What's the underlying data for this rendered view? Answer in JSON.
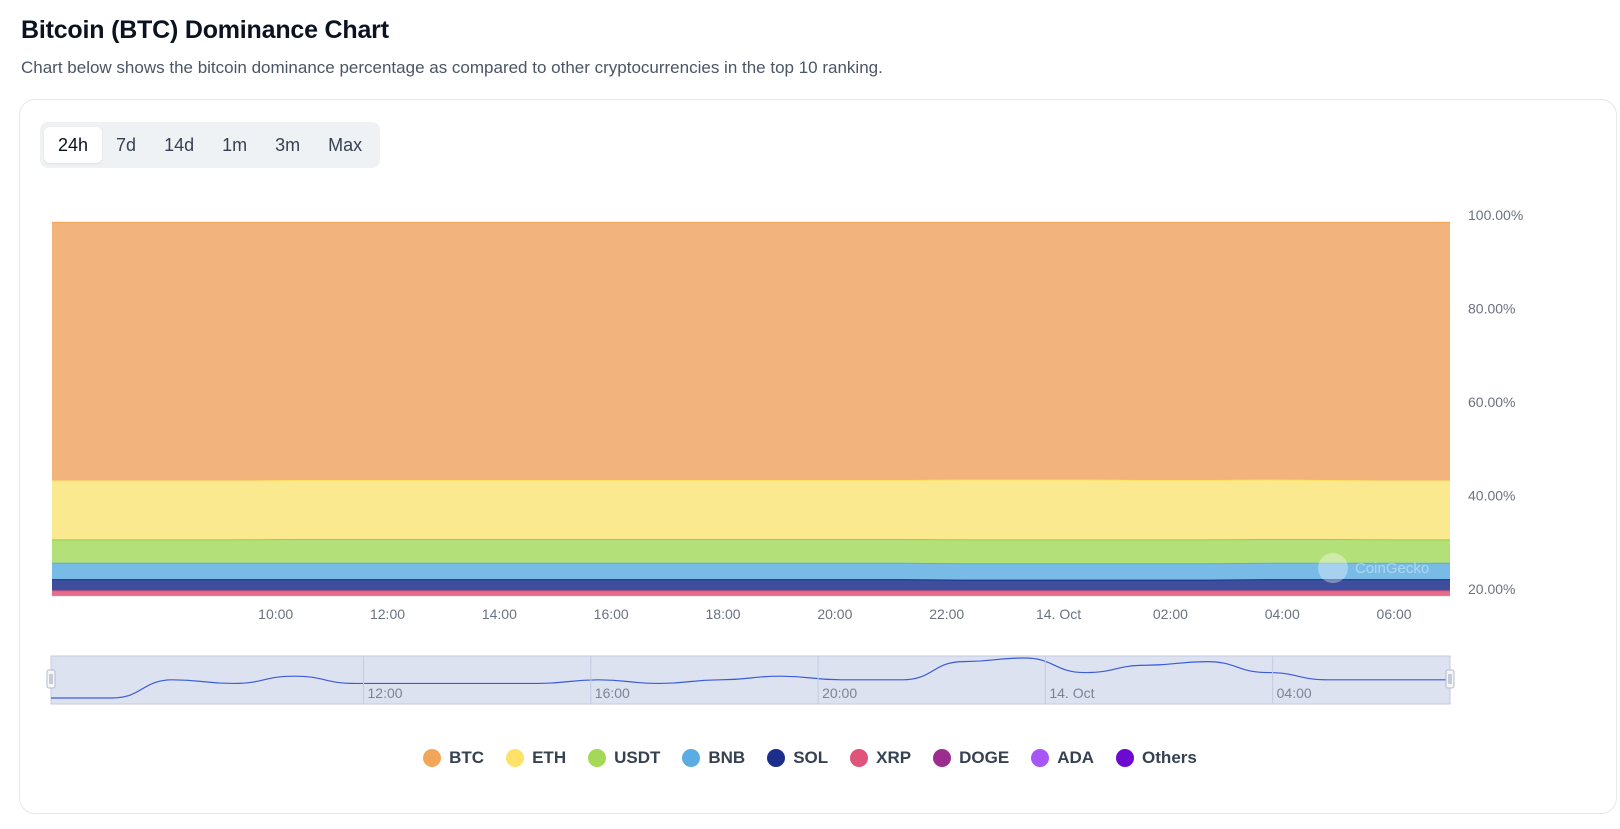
{
  "header": {
    "title": "Bitcoin (BTC) Dominance Chart",
    "subtitle": "Chart below shows the bitcoin dominance percentage as compared to other cryptocurrencies in the top 10 ranking."
  },
  "range_tabs": [
    "24h",
    "7d",
    "14d",
    "1m",
    "3m",
    "Max"
  ],
  "active_range": "24h",
  "watermark": "CoinGecko",
  "colors": {
    "BTC": "#f2b47c",
    "ETH": "#fbe98f",
    "USDT": "#b4e07a",
    "BNB": "#78bbe6",
    "SOL": "#3d4f9c",
    "XRP": "#e96b8c",
    "DOGE": "#a3479a",
    "ADA": "#a968ea",
    "Others": "#6f12d4",
    "grid": "#e6e8ec",
    "axis_text": "#6b7280",
    "navigator_fill": "#dde2f0",
    "navigator_line": "#3b5bd9"
  },
  "legend": [
    {
      "name": "BTC",
      "color": "#f2a65a"
    },
    {
      "name": "ETH",
      "color": "#fde267"
    },
    {
      "name": "USDT",
      "color": "#a3d957"
    },
    {
      "name": "BNB",
      "color": "#5aade0"
    },
    {
      "name": "SOL",
      "color": "#1b2e8c"
    },
    {
      "name": "XRP",
      "color": "#e0537a"
    },
    {
      "name": "DOGE",
      "color": "#9c2d8e"
    },
    {
      "name": "ADA",
      "color": "#a855f7"
    },
    {
      "name": "Others",
      "color": "#6d0ad1"
    }
  ],
  "chart_data": {
    "type": "area",
    "stacking": "percent",
    "title": "Bitcoin (BTC) Dominance Chart",
    "x_hours": [
      8,
      9,
      10,
      11,
      12,
      13,
      14,
      15,
      16,
      17,
      18,
      19,
      20,
      21,
      22,
      23,
      24,
      25,
      26,
      27,
      28,
      29,
      30,
      31
    ],
    "xticks": [
      {
        "hour": 10,
        "label": "10:00"
      },
      {
        "hour": 12,
        "label": "12:00"
      },
      {
        "hour": 14,
        "label": "14:00"
      },
      {
        "hour": 16,
        "label": "16:00"
      },
      {
        "hour": 18,
        "label": "18:00"
      },
      {
        "hour": 20,
        "label": "20:00"
      },
      {
        "hour": 22,
        "label": "22:00"
      },
      {
        "hour": 24,
        "label": "14. Oct"
      },
      {
        "hour": 26,
        "label": "02:00"
      },
      {
        "hour": 28,
        "label": "04:00"
      },
      {
        "hour": 30,
        "label": "06:00"
      }
    ],
    "x_range": [
      6,
      31
    ],
    "yticks": [
      {
        "value": 20,
        "label": "20.00%"
      },
      {
        "value": 40,
        "label": "40.00%"
      },
      {
        "value": 60,
        "label": "60.00%"
      },
      {
        "value": 80,
        "label": "80.00%"
      },
      {
        "value": 100,
        "label": "100.00%"
      }
    ],
    "ylim": [
      20,
      100
    ],
    "series": [
      {
        "name": "Others",
        "values": [
          0.8,
          0.8,
          0.8,
          0.8,
          0.8,
          0.8,
          0.8,
          0.8,
          0.8,
          0.8,
          0.8,
          0.8,
          0.8,
          0.8,
          0.8,
          0.8,
          0.8,
          0.8,
          0.8,
          0.8,
          0.8,
          0.8,
          0.8,
          0.8
        ]
      },
      {
        "name": "ADA",
        "values": [
          0.3,
          0.3,
          0.3,
          0.3,
          0.3,
          0.3,
          0.3,
          0.3,
          0.3,
          0.3,
          0.3,
          0.3,
          0.3,
          0.3,
          0.3,
          0.3,
          0.3,
          0.3,
          0.3,
          0.3,
          0.3,
          0.3,
          0.3,
          0.3
        ]
      },
      {
        "name": "DOGE",
        "values": [
          0.6,
          0.6,
          0.6,
          0.6,
          0.6,
          0.6,
          0.6,
          0.6,
          0.6,
          0.6,
          0.6,
          0.6,
          0.6,
          0.6,
          0.6,
          0.6,
          0.6,
          0.6,
          0.6,
          0.6,
          0.6,
          0.6,
          0.6,
          0.6
        ]
      },
      {
        "name": "XRP",
        "values": [
          1.0,
          1.0,
          1.0,
          1.0,
          1.0,
          1.0,
          1.0,
          1.0,
          1.0,
          1.0,
          1.0,
          1.0,
          1.0,
          1.0,
          1.0,
          1.0,
          1.0,
          1.0,
          1.0,
          1.0,
          1.0,
          1.0,
          1.0,
          1.0
        ]
      },
      {
        "name": "SOL",
        "values": [
          2.4,
          2.4,
          2.4,
          2.4,
          2.4,
          2.4,
          2.4,
          2.4,
          2.4,
          2.4,
          2.4,
          2.4,
          2.4,
          2.4,
          2.4,
          2.3,
          2.3,
          2.3,
          2.3,
          2.3,
          2.4,
          2.4,
          2.4,
          2.4
        ]
      },
      {
        "name": "BNB",
        "values": [
          3.5,
          3.5,
          3.5,
          3.5,
          3.5,
          3.5,
          3.5,
          3.5,
          3.5,
          3.5,
          3.5,
          3.5,
          3.5,
          3.5,
          3.5,
          3.5,
          3.5,
          3.5,
          3.5,
          3.5,
          3.5,
          3.5,
          3.5,
          3.5
        ]
      },
      {
        "name": "USDT",
        "values": [
          5.0,
          5.0,
          5.0,
          5.0,
          5.1,
          5.1,
          5.1,
          5.1,
          5.1,
          5.1,
          5.1,
          5.1,
          5.1,
          5.1,
          5.1,
          5.1,
          5.1,
          5.1,
          5.1,
          5.1,
          5.1,
          5.1,
          5.0,
          5.0
        ]
      },
      {
        "name": "ETH",
        "values": [
          12.6,
          12.6,
          12.6,
          12.6,
          12.6,
          12.6,
          12.6,
          12.6,
          12.6,
          12.6,
          12.6,
          12.6,
          12.6,
          12.6,
          12.6,
          12.8,
          12.8,
          12.8,
          12.7,
          12.7,
          12.7,
          12.6,
          12.6,
          12.6
        ]
      },
      {
        "name": "BTC",
        "values": [
          53.8,
          53.8,
          53.9,
          54.0,
          54.1,
          54.1,
          54.0,
          54.0,
          54.0,
          54.1,
          54.1,
          54.1,
          54.2,
          54.2,
          54.3,
          54.5,
          54.6,
          54.5,
          54.4,
          54.3,
          54.2,
          54.1,
          54.0,
          54.0
        ]
      }
    ],
    "navigator": {
      "btc_trend": [
        53.7,
        53.7,
        54.2,
        54.1,
        54.3,
        54.1,
        54.1,
        54.1,
        54.1,
        54.2,
        54.1,
        54.2,
        54.3,
        54.2,
        54.2,
        54.7,
        54.8,
        54.4,
        54.6,
        54.7,
        54.4,
        54.2,
        54.2,
        54.2
      ],
      "xticks": [
        {
          "hour": 12,
          "label": "12:00"
        },
        {
          "hour": 16,
          "label": "16:00"
        },
        {
          "hour": 20,
          "label": "20:00"
        },
        {
          "hour": 24,
          "label": "14. Oct"
        },
        {
          "hour": 28,
          "label": "04:00"
        }
      ]
    },
    "legend_position": "bottom-center"
  }
}
